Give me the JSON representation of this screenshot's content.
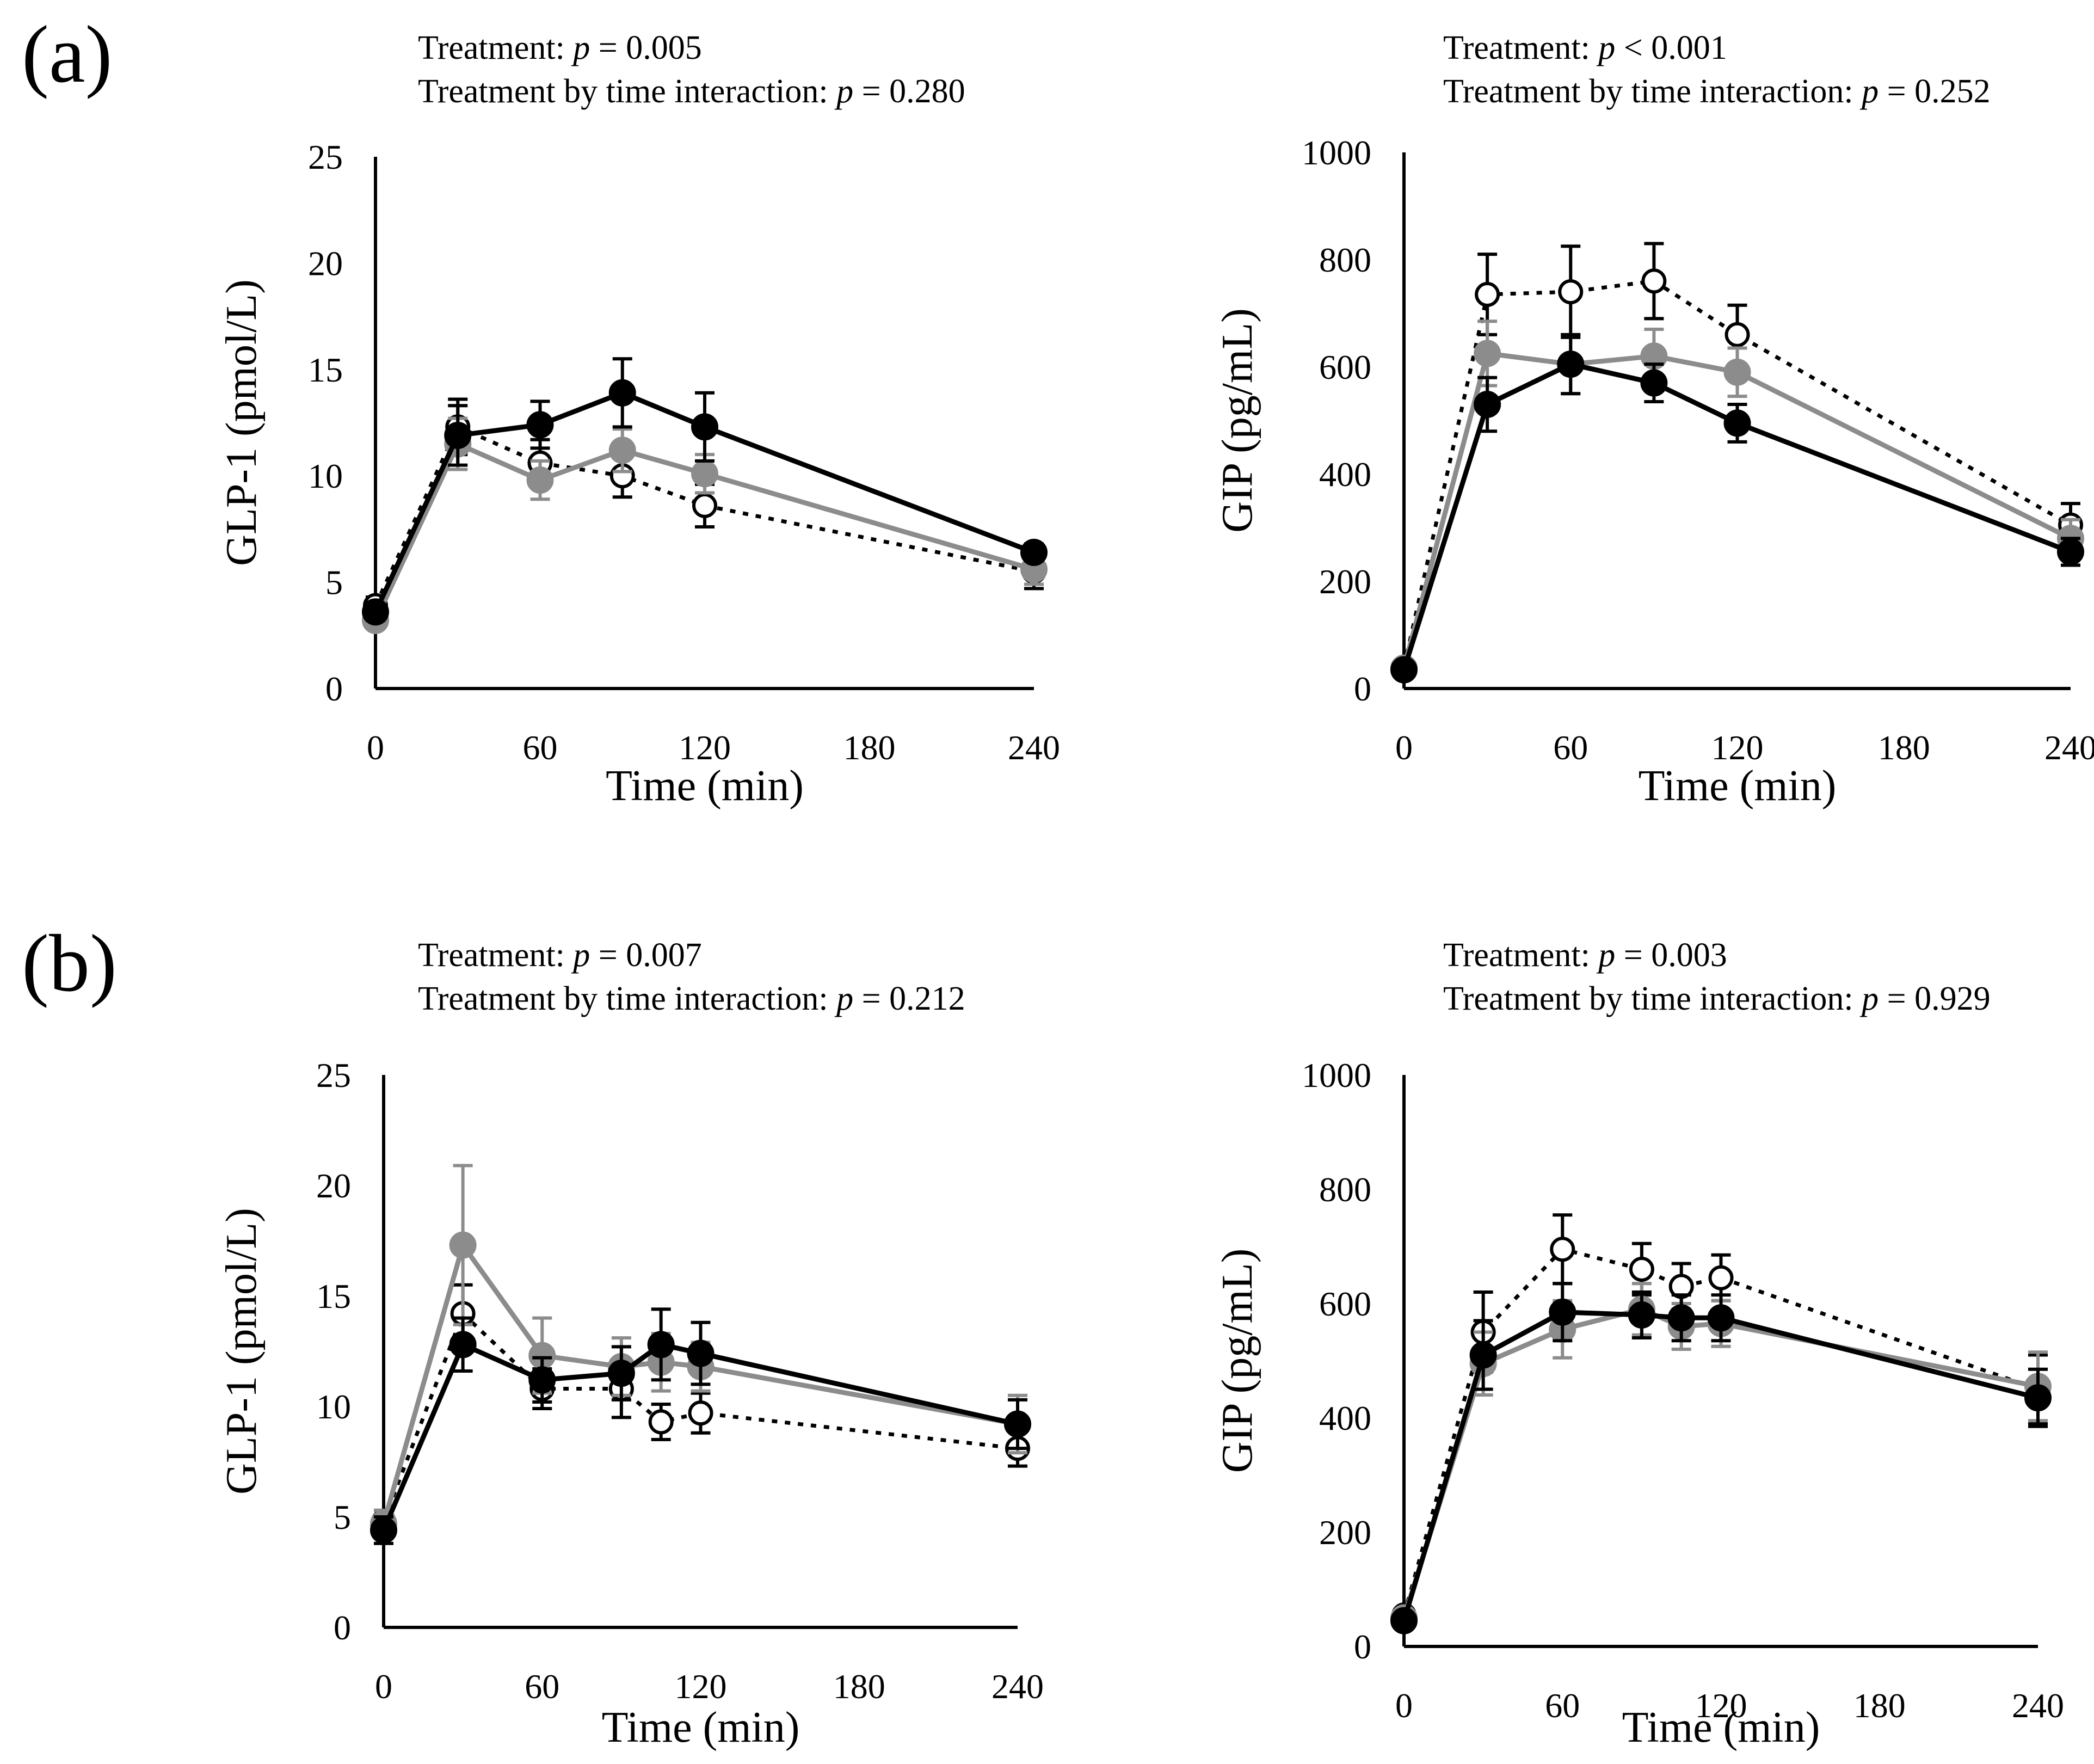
{
  "panels": [
    {
      "label": "(a)"
    },
    {
      "label": "(b)"
    }
  ],
  "chart_data": [
    {
      "type": "line",
      "panel": "(a)",
      "stat_treatment": {
        "prefix": "Treatment: ",
        "p": "p",
        "value": " = 0.005"
      },
      "stat_interaction": {
        "prefix": "Treatment by time interaction: ",
        "p": "p",
        "value": " = 0.280"
      },
      "xlabel": "Time (min)",
      "ylabel": "GLP-1 (pmol/L)",
      "xlim": [
        0,
        240
      ],
      "ylim": [
        0,
        25
      ],
      "xticks": [
        0,
        60,
        120,
        180,
        240
      ],
      "yticks": [
        0,
        5,
        10,
        15,
        20,
        25
      ],
      "series": [
        {
          "name": "open circle dotted",
          "style": "open",
          "x": [
            0,
            30,
            60,
            90,
            120,
            240
          ],
          "y": [
            3.9,
            12.3,
            10.6,
            10.0,
            8.6,
            5.5
          ],
          "err": [
            0.4,
            1.3,
            1.1,
            1.0,
            1.0,
            0.8
          ]
        },
        {
          "name": "gray circle",
          "style": "gray",
          "x": [
            0,
            30,
            60,
            90,
            120,
            240
          ],
          "y": [
            3.2,
            11.5,
            9.8,
            11.2,
            10.1,
            5.6
          ],
          "err": [
            0.3,
            1.2,
            0.9,
            1.0,
            0.9,
            0.7
          ]
        },
        {
          "name": "black circle",
          "style": "black",
          "x": [
            0,
            30,
            60,
            90,
            120,
            240
          ],
          "y": [
            3.6,
            11.9,
            12.4,
            13.9,
            12.3,
            6.4
          ],
          "err": [
            0.4,
            1.4,
            1.1,
            1.6,
            1.6,
            0.4
          ]
        }
      ]
    },
    {
      "type": "line",
      "panel": "(a)",
      "stat_treatment": {
        "prefix": "Treatment: ",
        "p": "p",
        "value": " < 0.001"
      },
      "stat_interaction": {
        "prefix": "Treatment by time interaction: ",
        "p": "p",
        "value": " = 0.252"
      },
      "xlabel": "Time (min)",
      "ylabel": "GIP (pg/mL)",
      "xlim": [
        0,
        240
      ],
      "ylim": [
        0,
        1000
      ],
      "xticks": [
        0,
        60,
        120,
        180,
        240
      ],
      "yticks": [
        0,
        200,
        400,
        600,
        800,
        1000
      ],
      "series": [
        {
          "name": "open circle dotted",
          "style": "open",
          "x": [
            0,
            30,
            60,
            90,
            120,
            240
          ],
          "y": [
            40,
            735,
            740,
            760,
            660,
            305
          ],
          "err": [
            8,
            75,
            85,
            70,
            55,
            40
          ]
        },
        {
          "name": "gray circle",
          "style": "gray",
          "x": [
            0,
            30,
            60,
            90,
            120,
            240
          ],
          "y": [
            38,
            625,
            605,
            620,
            590,
            280
          ],
          "err": [
            8,
            60,
            55,
            50,
            45,
            35
          ]
        },
        {
          "name": "black circle",
          "style": "black",
          "x": [
            0,
            30,
            60,
            90,
            120,
            240
          ],
          "y": [
            35,
            530,
            605,
            570,
            495,
            255
          ],
          "err": [
            8,
            50,
            55,
            35,
            35,
            25
          ]
        }
      ]
    },
    {
      "type": "line",
      "panel": "(b)",
      "stat_treatment": {
        "prefix": "Treatment: ",
        "p": "p",
        "value": " = 0.007"
      },
      "stat_interaction": {
        "prefix": "Treatment by time interaction: ",
        "p": "p",
        "value": " = 0.212"
      },
      "xlabel": "Time (min)",
      "ylabel": "GLP-1 (pmol/L)",
      "xlim": [
        0,
        240
      ],
      "ylim": [
        0,
        25
      ],
      "xticks": [
        0,
        60,
        120,
        180,
        240
      ],
      "yticks": [
        0,
        5,
        10,
        15,
        20,
        25
      ],
      "series": [
        {
          "name": "open circle dotted",
          "style": "open",
          "x": [
            0,
            30,
            60,
            90,
            105,
            120,
            240
          ],
          "y": [
            4.8,
            14.2,
            10.8,
            10.8,
            9.3,
            9.7,
            8.1
          ],
          "err": [
            0.5,
            1.3,
            0.9,
            1.3,
            0.8,
            0.9,
            0.8
          ]
        },
        {
          "name": "gray circle",
          "style": "gray",
          "x": [
            0,
            30,
            60,
            90,
            105,
            120,
            240
          ],
          "y": [
            4.7,
            17.3,
            12.3,
            11.8,
            12.0,
            11.8,
            9.2
          ],
          "err": [
            0.6,
            3.6,
            1.7,
            1.3,
            1.3,
            1.1,
            1.3
          ]
        },
        {
          "name": "black circle",
          "style": "black",
          "x": [
            0,
            30,
            60,
            90,
            105,
            120,
            240
          ],
          "y": [
            4.4,
            12.8,
            11.2,
            11.5,
            12.8,
            12.4,
            9.2
          ],
          "err": [
            0.6,
            1.2,
            1.0,
            1.2,
            1.6,
            1.4,
            1.1
          ]
        }
      ]
    },
    {
      "type": "line",
      "panel": "(b)",
      "stat_treatment": {
        "prefix": "Treatment: ",
        "p": "p",
        "value": " = 0.003"
      },
      "stat_interaction": {
        "prefix": "Treatment by time interaction: ",
        "p": "p",
        "value": " = 0.929"
      },
      "xlabel": "Time (min)",
      "ylabel": "GIP (pg/mL)",
      "xlim": [
        0,
        240
      ],
      "ylim": [
        0,
        1000
      ],
      "xticks": [
        0,
        60,
        120,
        180,
        240
      ],
      "yticks": [
        0,
        200,
        400,
        600,
        800,
        1000
      ],
      "series": [
        {
          "name": "open circle dotted",
          "style": "open",
          "x": [
            0,
            30,
            60,
            90,
            105,
            120,
            240
          ],
          "y": [
            55,
            550,
            695,
            660,
            630,
            645,
            450
          ],
          "err": [
            10,
            70,
            60,
            45,
            40,
            40,
            60
          ]
        },
        {
          "name": "gray circle",
          "style": "gray",
          "x": [
            0,
            30,
            60,
            90,
            105,
            120,
            240
          ],
          "y": [
            50,
            495,
            555,
            590,
            560,
            565,
            455
          ],
          "err": [
            10,
            55,
            50,
            45,
            40,
            40,
            60
          ]
        },
        {
          "name": "black circle",
          "style": "black",
          "x": [
            0,
            30,
            60,
            90,
            105,
            120,
            240
          ],
          "y": [
            45,
            510,
            585,
            580,
            575,
            575,
            435
          ],
          "err": [
            10,
            60,
            50,
            40,
            40,
            40,
            50
          ]
        }
      ]
    }
  ]
}
